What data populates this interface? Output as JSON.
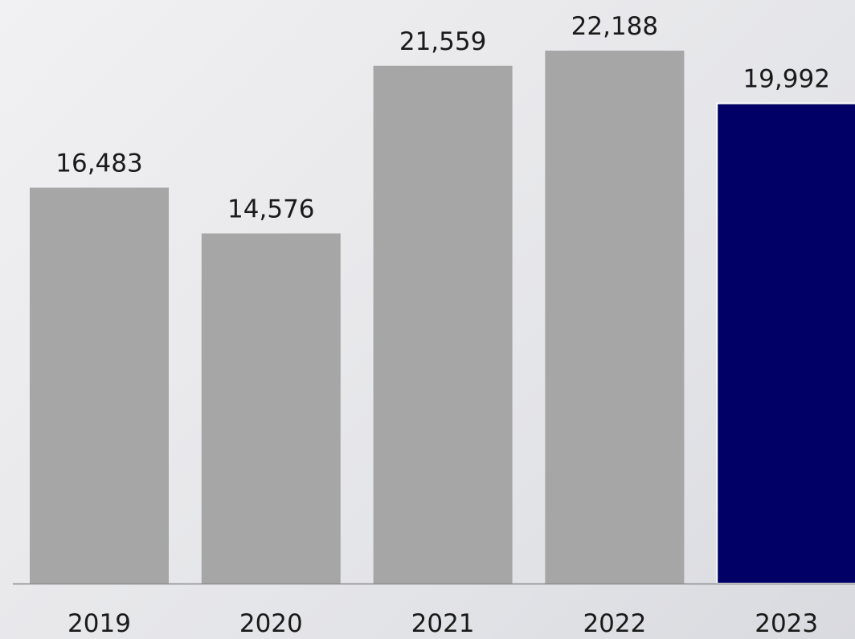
{
  "chart_data": {
    "type": "bar",
    "categories": [
      "2019",
      "2020",
      "2021",
      "2022",
      "2023"
    ],
    "values": [
      16483,
      14576,
      21559,
      22188,
      19992
    ],
    "value_labels": [
      "16,483",
      "14,576",
      "21,559",
      "22,188",
      "19,992"
    ],
    "title": "",
    "xlabel": "",
    "ylabel": "",
    "ylim": [
      0,
      22188
    ],
    "grid": false,
    "legend": "none",
    "colors": {
      "bar": "#a6a6a6",
      "highlight_bar": "#000066",
      "axis": "#8c8c8c"
    },
    "highlight_index": 4
  }
}
